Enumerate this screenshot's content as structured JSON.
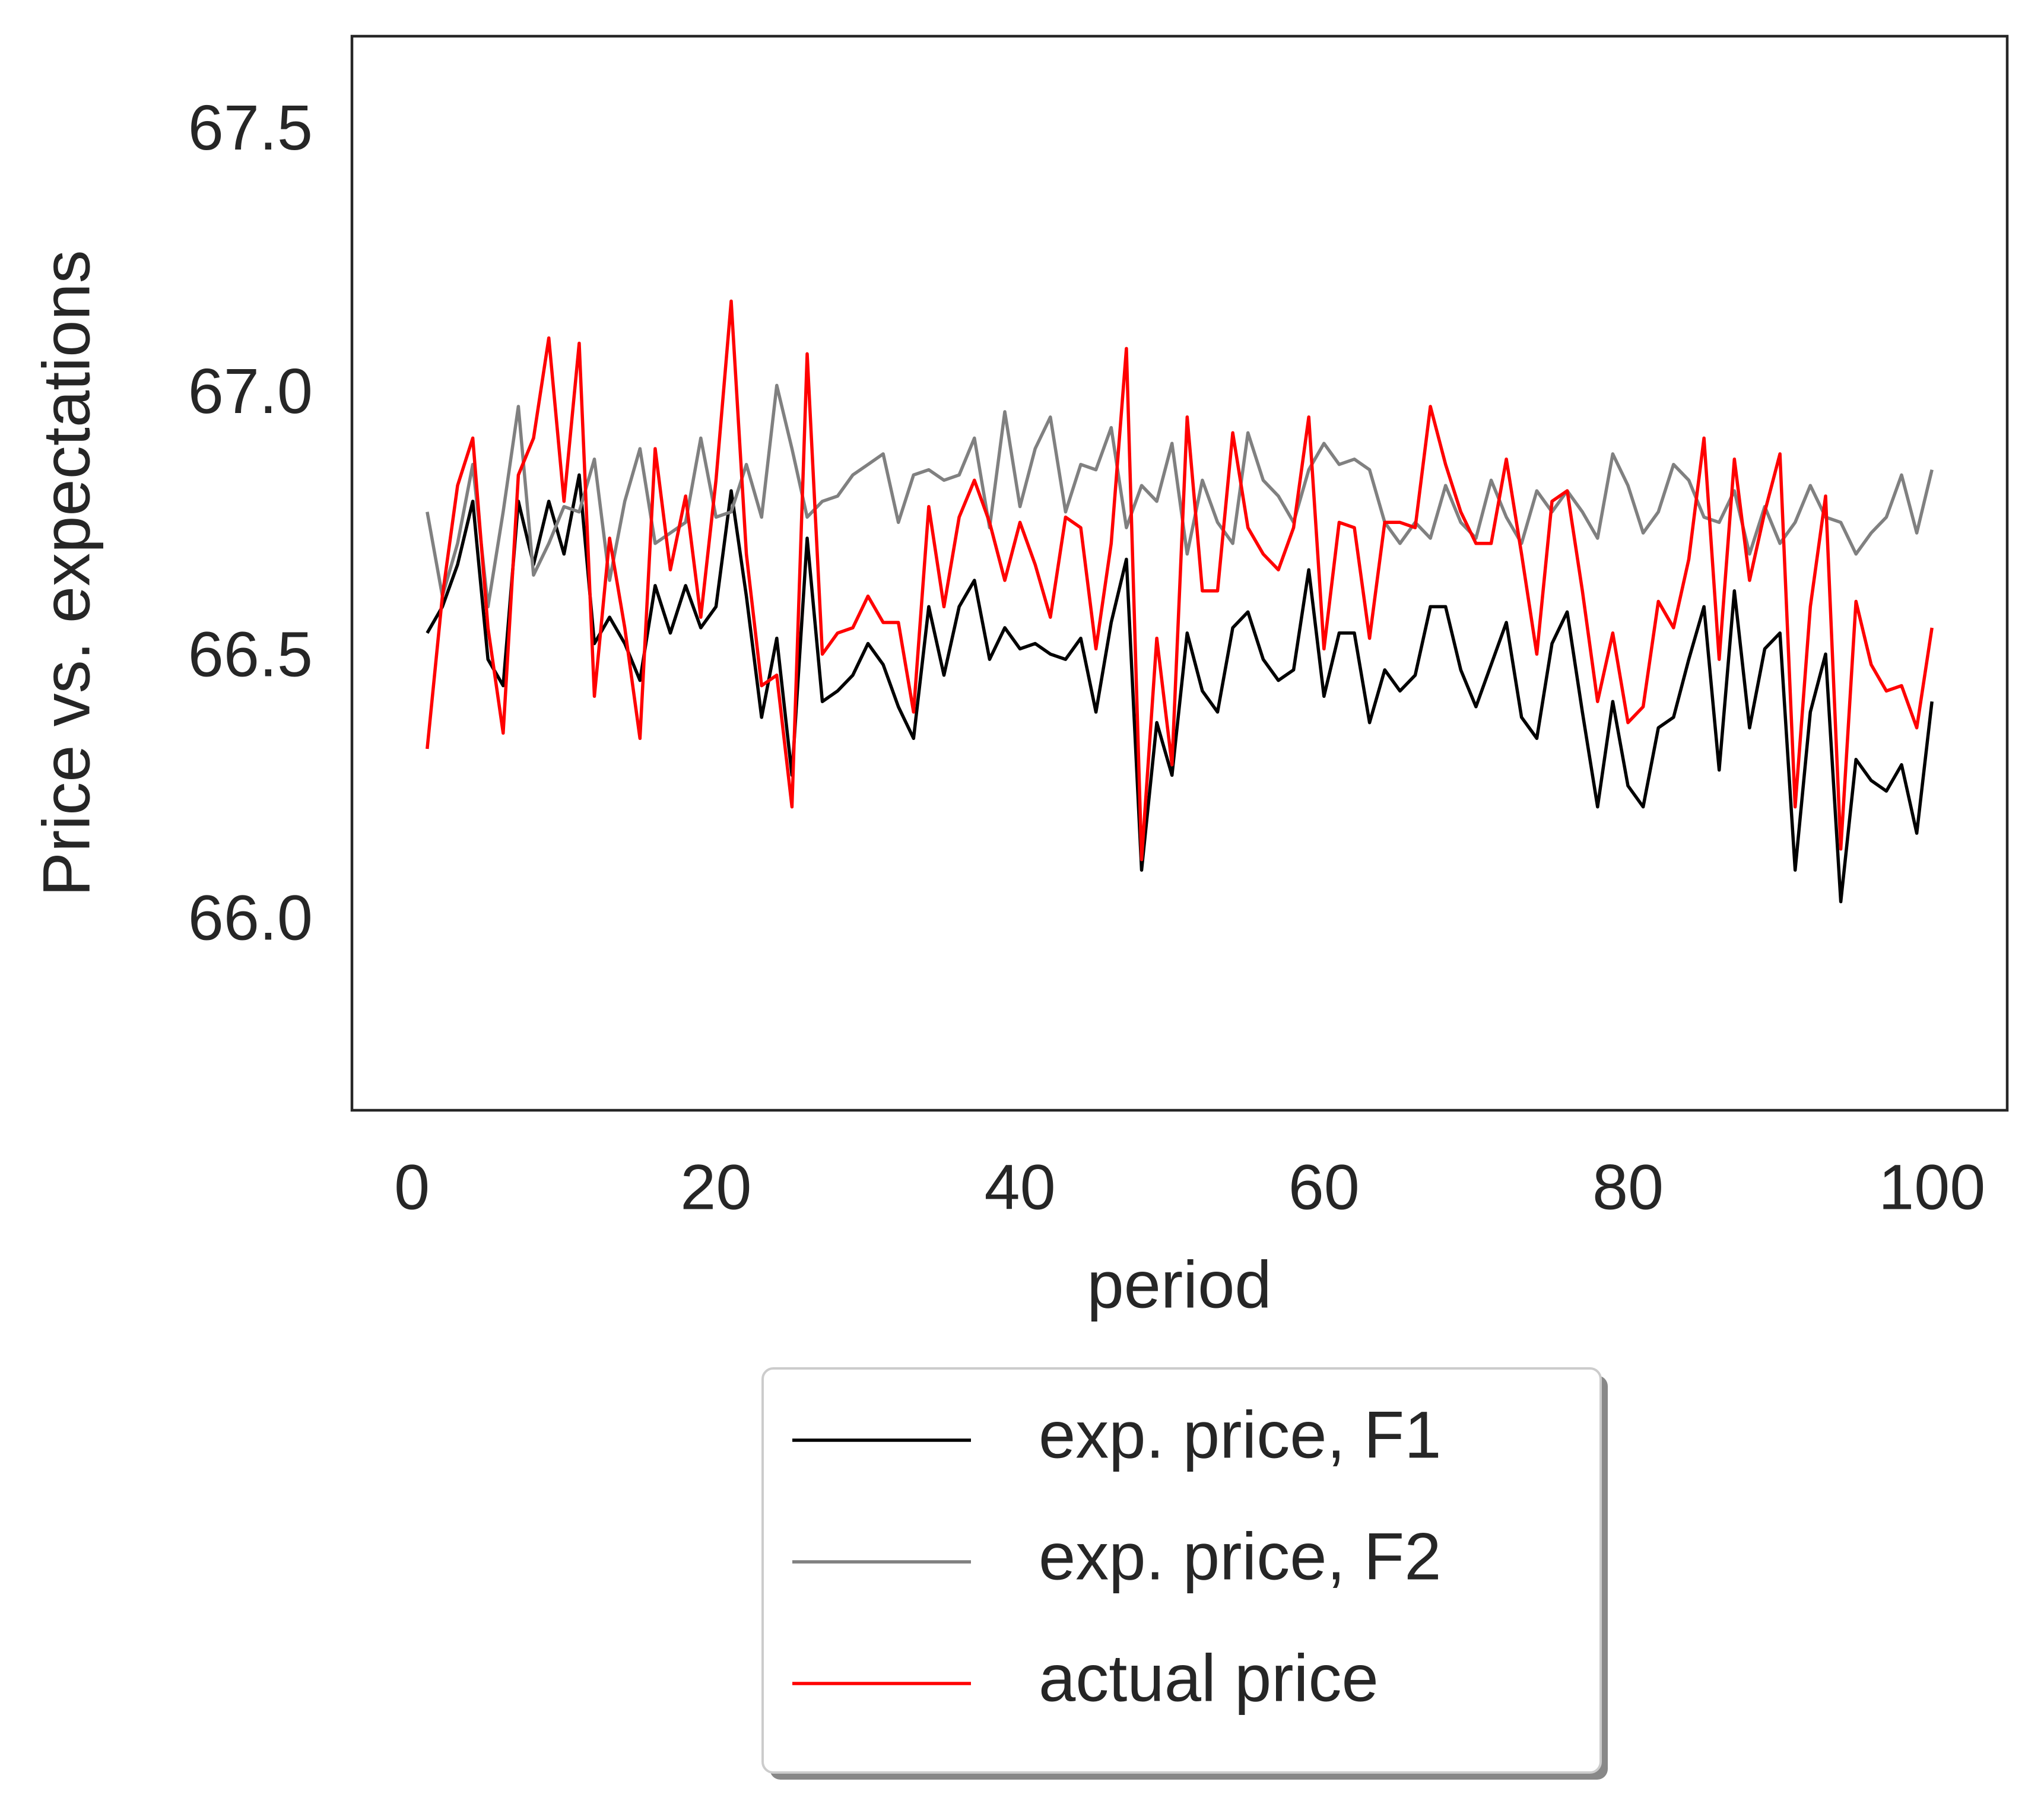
{
  "chart_data": {
    "type": "line",
    "xlabel": "period",
    "ylabel": "Price vs. expectations",
    "x": [
      1,
      2,
      3,
      4,
      5,
      6,
      7,
      8,
      9,
      10,
      11,
      12,
      13,
      14,
      15,
      16,
      17,
      18,
      19,
      20,
      21,
      22,
      23,
      24,
      25,
      26,
      27,
      28,
      29,
      30,
      31,
      32,
      33,
      34,
      35,
      36,
      37,
      38,
      39,
      40,
      41,
      42,
      43,
      44,
      45,
      46,
      47,
      48,
      49,
      50,
      51,
      52,
      53,
      54,
      55,
      56,
      57,
      58,
      59,
      60,
      61,
      62,
      63,
      64,
      65,
      66,
      67,
      68,
      69,
      70,
      71,
      72,
      73,
      74,
      75,
      76,
      77,
      78,
      79,
      80,
      81,
      82,
      83,
      84,
      85,
      86,
      87,
      88,
      89,
      90,
      91,
      92,
      93,
      94,
      95,
      96,
      97,
      98,
      99,
      100
    ],
    "series": [
      {
        "name": "exp. price, F1",
        "color": "#000000",
        "values": [
          66.55,
          66.6,
          66.68,
          66.8,
          66.5,
          66.45,
          66.8,
          66.68,
          66.8,
          66.7,
          66.85,
          66.53,
          66.58,
          66.53,
          66.46,
          66.64,
          66.55,
          66.64,
          66.56,
          66.6,
          66.82,
          66.62,
          66.39,
          66.54,
          66.28,
          66.73,
          66.42,
          66.44,
          66.47,
          66.53,
          66.49,
          66.41,
          66.35,
          66.6,
          66.47,
          66.6,
          66.65,
          66.5,
          66.56,
          66.52,
          66.53,
          66.51,
          66.5,
          66.54,
          66.4,
          66.57,
          66.69,
          66.1,
          66.38,
          66.28,
          66.55,
          66.44,
          66.4,
          66.56,
          66.59,
          66.5,
          66.46,
          66.48,
          66.67,
          66.43,
          66.55,
          66.55,
          66.38,
          66.48,
          66.44,
          66.47,
          66.6,
          66.6,
          66.48,
          66.41,
          66.49,
          66.57,
          66.39,
          66.35,
          66.53,
          66.59,
          66.4,
          66.22,
          66.42,
          66.26,
          66.22,
          66.37,
          66.39,
          66.5,
          66.6,
          66.29,
          66.63,
          66.37,
          66.52,
          66.55,
          66.1,
          66.4,
          66.51,
          66.04,
          66.31,
          66.27,
          66.25,
          66.3,
          66.17,
          66.42
        ]
      },
      {
        "name": "exp. price, F2",
        "color": "#808080",
        "values": [
          66.78,
          66.62,
          66.72,
          66.87,
          66.6,
          66.78,
          66.98,
          66.66,
          66.72,
          66.79,
          66.78,
          66.88,
          66.65,
          66.8,
          66.9,
          66.72,
          66.74,
          66.76,
          66.92,
          66.77,
          66.78,
          66.87,
          66.77,
          67.02,
          66.9,
          66.77,
          66.8,
          66.81,
          66.85,
          66.87,
          66.89,
          66.76,
          66.85,
          66.86,
          66.84,
          66.85,
          66.92,
          66.75,
          66.97,
          66.79,
          66.9,
          66.96,
          66.78,
          66.87,
          66.86,
          66.94,
          66.75,
          66.83,
          66.8,
          66.91,
          66.7,
          66.84,
          66.76,
          66.72,
          66.93,
          66.84,
          66.81,
          66.76,
          66.86,
          66.91,
          66.87,
          66.88,
          66.86,
          66.76,
          66.72,
          66.76,
          66.73,
          66.83,
          66.76,
          66.73,
          66.84,
          66.77,
          66.72,
          66.82,
          66.78,
          66.82,
          66.78,
          66.73,
          66.89,
          66.83,
          66.74,
          66.78,
          66.87,
          66.84,
          66.77,
          66.76,
          66.82,
          66.7,
          66.79,
          66.72,
          66.76,
          66.83,
          66.77,
          66.76,
          66.7,
          66.74,
          66.77,
          66.85,
          66.74,
          66.86
        ]
      },
      {
        "name": "actual price",
        "color": "#ff0000",
        "values": [
          66.33,
          66.62,
          66.83,
          66.92,
          66.56,
          66.36,
          66.85,
          66.92,
          67.11,
          66.8,
          67.1,
          66.43,
          66.73,
          66.56,
          66.35,
          66.9,
          66.67,
          66.81,
          66.58,
          66.84,
          67.18,
          66.7,
          66.45,
          66.47,
          66.22,
          67.08,
          66.51,
          66.55,
          66.56,
          66.62,
          66.57,
          66.57,
          66.4,
          66.79,
          66.6,
          66.77,
          66.84,
          66.76,
          66.65,
          66.76,
          66.68,
          66.58,
          66.77,
          66.75,
          66.52,
          66.72,
          67.09,
          66.12,
          66.54,
          66.3,
          66.96,
          66.63,
          66.63,
          66.93,
          66.75,
          66.7,
          66.67,
          66.75,
          66.96,
          66.52,
          66.76,
          66.75,
          66.54,
          66.76,
          66.76,
          66.75,
          66.98,
          66.87,
          66.78,
          66.72,
          66.72,
          66.88,
          66.7,
          66.51,
          66.8,
          66.82,
          66.63,
          66.42,
          66.55,
          66.38,
          66.41,
          66.61,
          66.56,
          66.69,
          66.92,
          66.5,
          66.88,
          66.65,
          66.78,
          66.89,
          66.22,
          66.6,
          66.81,
          66.14,
          66.61,
          66.49,
          66.44,
          66.45,
          66.37,
          66.56
        ]
      }
    ],
    "xlim": [
      -3.95,
      104.95
    ],
    "ylim": [
      65.644,
      67.683
    ],
    "xticks": [
      0,
      20,
      40,
      60,
      80,
      100
    ],
    "yticks": [
      {
        "value": 66.0,
        "label": "66.0"
      },
      {
        "value": 66.5,
        "label": "66.5"
      },
      {
        "value": 67.0,
        "label": "67.0"
      },
      {
        "value": 67.5,
        "label": "67.5"
      }
    ],
    "grid": false,
    "legend": "below"
  }
}
